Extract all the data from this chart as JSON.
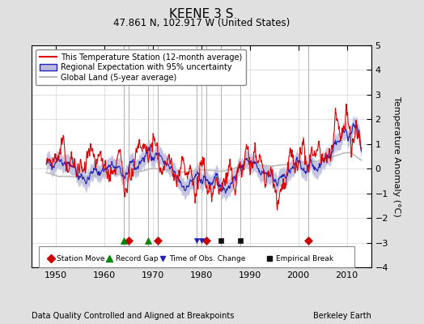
{
  "title": "KEENE 3 S",
  "subtitle": "47.861 N, 102.917 W (United States)",
  "ylabel": "Temperature Anomaly (°C)",
  "footer_left": "Data Quality Controlled and Aligned at Breakpoints",
  "footer_right": "Berkeley Earth",
  "xlim": [
    1945,
    2015
  ],
  "ylim": [
    -4,
    5
  ],
  "yticks": [
    -4,
    -3,
    -2,
    -1,
    0,
    1,
    2,
    3,
    4,
    5
  ],
  "xticks": [
    1950,
    1960,
    1970,
    1980,
    1990,
    2000,
    2010
  ],
  "bg_color": "#e0e0e0",
  "plot_bg_color": "#ffffff",
  "station_color": "#dd0000",
  "regional_color": "#2222bb",
  "regional_fill_color": "#bbbbdd",
  "global_color": "#bbbbbb",
  "legend_line1": "This Temperature Station (12-month average)",
  "legend_line2": "Regional Expectation with 95% uncertainty",
  "legend_line3": "Global Land (5-year average)",
  "marker_events": {
    "station_move": {
      "years": [
        1965,
        1971,
        1981,
        2002
      ],
      "color": "#cc0000",
      "marker": "D",
      "size": 5
    },
    "record_gap": {
      "years": [
        1964,
        1969
      ],
      "color": "#008800",
      "marker": "^",
      "size": 6
    },
    "time_obs_change": {
      "years": [
        1979,
        1980
      ],
      "color": "#2222bb",
      "marker": "v",
      "size": 5
    },
    "empirical_break": {
      "years": [
        1984,
        1988
      ],
      "color": "#111111",
      "marker": "s",
      "size": 5
    }
  },
  "event_line_years": [
    1965,
    1971,
    1981,
    2002,
    1964,
    1969,
    1979,
    1980,
    1984,
    1988
  ],
  "marker_y": -2.9,
  "seed": 42
}
